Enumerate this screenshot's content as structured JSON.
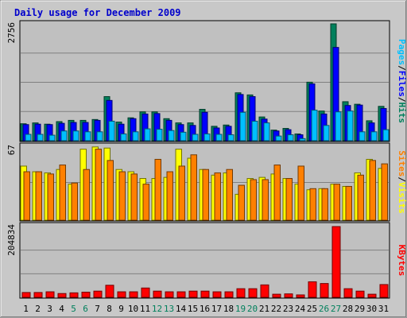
{
  "colors": {
    "frame_bg": "#c8c8c8",
    "plot_bg": "#c0c0c0",
    "grid": "#808080",
    "hits": "#00805c",
    "files": "#0000ff",
    "pages": "#00c0ff",
    "visits": "#ffff00",
    "sites": "#ff8000",
    "kbytes": "#ff0000",
    "title": "#0000cc",
    "weekend_label": "#00805c",
    "weekday_label": "#000000",
    "slash": "#000000"
  },
  "chart_data": {
    "type": "bar",
    "title": "Daily usage for December 2009",
    "categories": [
      "1",
      "2",
      "3",
      "4",
      "5",
      "6",
      "7",
      "8",
      "9",
      "10",
      "11",
      "12",
      "13",
      "14",
      "15",
      "16",
      "17",
      "18",
      "19",
      "20",
      "21",
      "22",
      "23",
      "24",
      "25",
      "26",
      "27",
      "28",
      "29",
      "30",
      "31"
    ],
    "weekend_days": [
      "5",
      "6",
      "12",
      "13",
      "19",
      "20",
      "26",
      "27"
    ],
    "panels": [
      {
        "id": "hits_files_pages",
        "ymax_label": "2756",
        "ylim": [
          0,
          2756
        ],
        "label_parts": [
          {
            "text": "Pages",
            "color_key": "pages"
          },
          {
            "text": "/",
            "color_key": "slash"
          },
          {
            "text": "Files",
            "color_key": "files"
          },
          {
            "text": "/",
            "color_key": "slash"
          },
          {
            "text": "Hits",
            "color_key": "hits"
          }
        ],
        "series": [
          {
            "name": "Hits",
            "color_key": "hits",
            "values": [
              400,
              420,
              390,
              450,
              480,
              480,
              500,
              1040,
              440,
              540,
              680,
              680,
              520,
              420,
              420,
              740,
              340,
              370,
              1130,
              1080,
              560,
              250,
              290,
              160,
              1380,
              700,
              2756,
              920,
              860,
              470,
              810
            ]
          },
          {
            "name": "Files",
            "color_key": "files",
            "values": [
              380,
              390,
              380,
              410,
              430,
              430,
              480,
              950,
              390,
              520,
              630,
              640,
              480,
              380,
              360,
              670,
              300,
              340,
              1090,
              1040,
              510,
              230,
              260,
              140,
              1340,
              630,
              2200,
              830,
              840,
              420,
              760
            ]
          },
          {
            "name": "Pages",
            "color_key": "pages",
            "values": [
              150,
              150,
              130,
              230,
              230,
              210,
              210,
              460,
              160,
              210,
              280,
              270,
              240,
              200,
              150,
              160,
              150,
              140,
              670,
              460,
              420,
              110,
              140,
              50,
              720,
              360,
              680,
              700,
              210,
              210,
              260
            ]
          }
        ]
      },
      {
        "id": "visits_sites",
        "ymax_label": "67",
        "ylim": [
          0,
          67
        ],
        "label_parts": [
          {
            "text": "Sites",
            "color_key": "sites"
          },
          {
            "text": "/",
            "color_key": "slash"
          },
          {
            "text": "Visits",
            "color_key": "visits"
          }
        ],
        "series": [
          {
            "name": "Visits",
            "color_key": "visits",
            "values": [
              48,
              43,
              42,
              45,
              32,
              63,
              65,
              64,
              45,
              43,
              37,
              37,
              38,
              63,
              55,
              45,
              40,
              42,
              23,
              37,
              38,
              41,
              37,
              32,
              27,
              28,
              32,
              30,
              42,
              54,
              46
            ]
          },
          {
            "name": "Sites",
            "color_key": "sites",
            "values": [
              43,
              43,
              41,
              49,
              33,
              45,
              63,
              53,
              43,
              41,
              32,
              54,
              43,
              48,
              58,
              45,
              42,
              45,
              31,
              36,
              36,
              49,
              37,
              48,
              28,
              28,
              32,
              30,
              40,
              53,
              50
            ]
          }
        ]
      },
      {
        "id": "kbytes",
        "ymax_label": "204834",
        "ylim": [
          0,
          204834
        ],
        "label_parts": [
          {
            "text": "KBytes",
            "color_key": "kbytes"
          }
        ],
        "series": [
          {
            "name": "KBytes",
            "color_key": "kbytes",
            "values": [
              14000,
              14000,
              16000,
              11000,
              13000,
              15000,
              18000,
              35000,
              16000,
              16000,
              27000,
              18000,
              16000,
              16000,
              18000,
              18000,
              16000,
              16000,
              25000,
              25000,
              36000,
              9000,
              10000,
              7000,
              45000,
              40000,
              204834,
              25000,
              18000,
              9000,
              37000
            ]
          }
        ]
      }
    ]
  }
}
